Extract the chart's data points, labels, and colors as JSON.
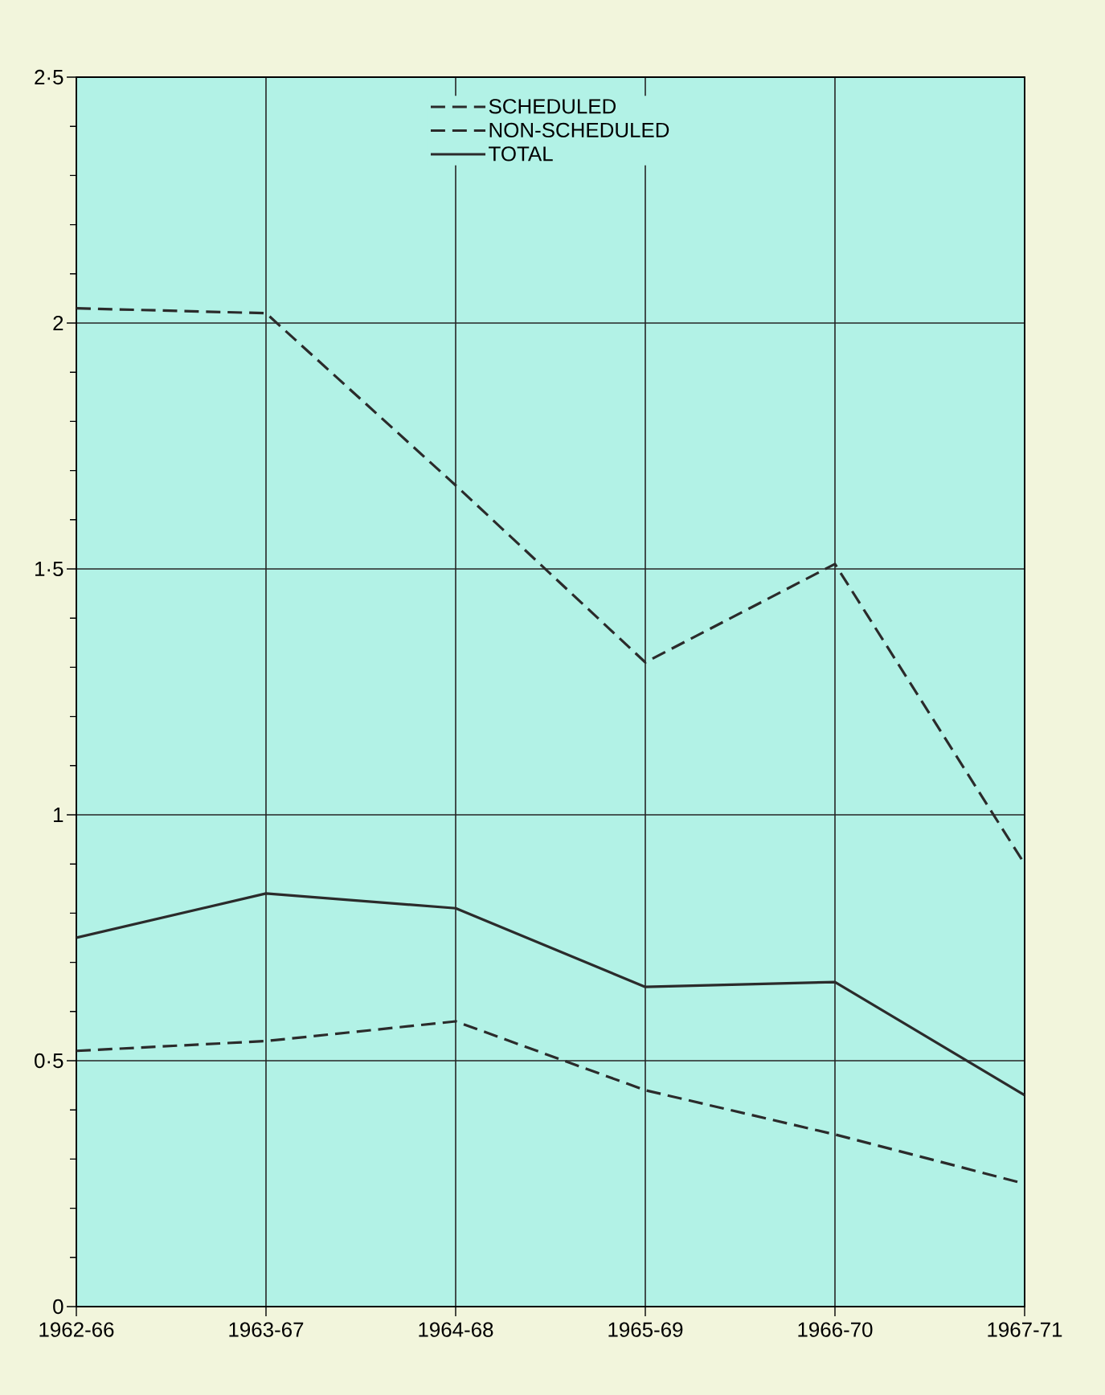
{
  "chart_data": {
    "type": "line",
    "categories": [
      "1962-66",
      "1963-67",
      "1964-68",
      "1965-69",
      "1966-70",
      "1967-71"
    ],
    "series": [
      {
        "name": "SCHEDULED",
        "color": "#2b2b2b",
        "line_style": "dashed",
        "values": [
          0.52,
          0.54,
          0.58,
          0.44,
          0.35,
          0.25
        ]
      },
      {
        "name": "NON-SCHEDULED",
        "color": "#2b2b2b",
        "line_style": "dashed",
        "values": [
          2.03,
          2.02,
          1.67,
          1.31,
          1.51,
          0.9
        ]
      },
      {
        "name": "TOTAL",
        "color": "#2b2b2b",
        "line_style": "solid",
        "values": [
          0.75,
          0.84,
          0.81,
          0.65,
          0.66,
          0.43
        ]
      }
    ],
    "ylim": [
      0,
      2.5
    ],
    "yticks": [
      0,
      {
        "value": 0.5,
        "label": "0·5"
      },
      1,
      {
        "value": 1.5,
        "label": "1·5"
      },
      2,
      {
        "value": 2.5,
        "label": "2·5"
      }
    ],
    "grid": true,
    "legend": "top",
    "marker": "none"
  }
}
